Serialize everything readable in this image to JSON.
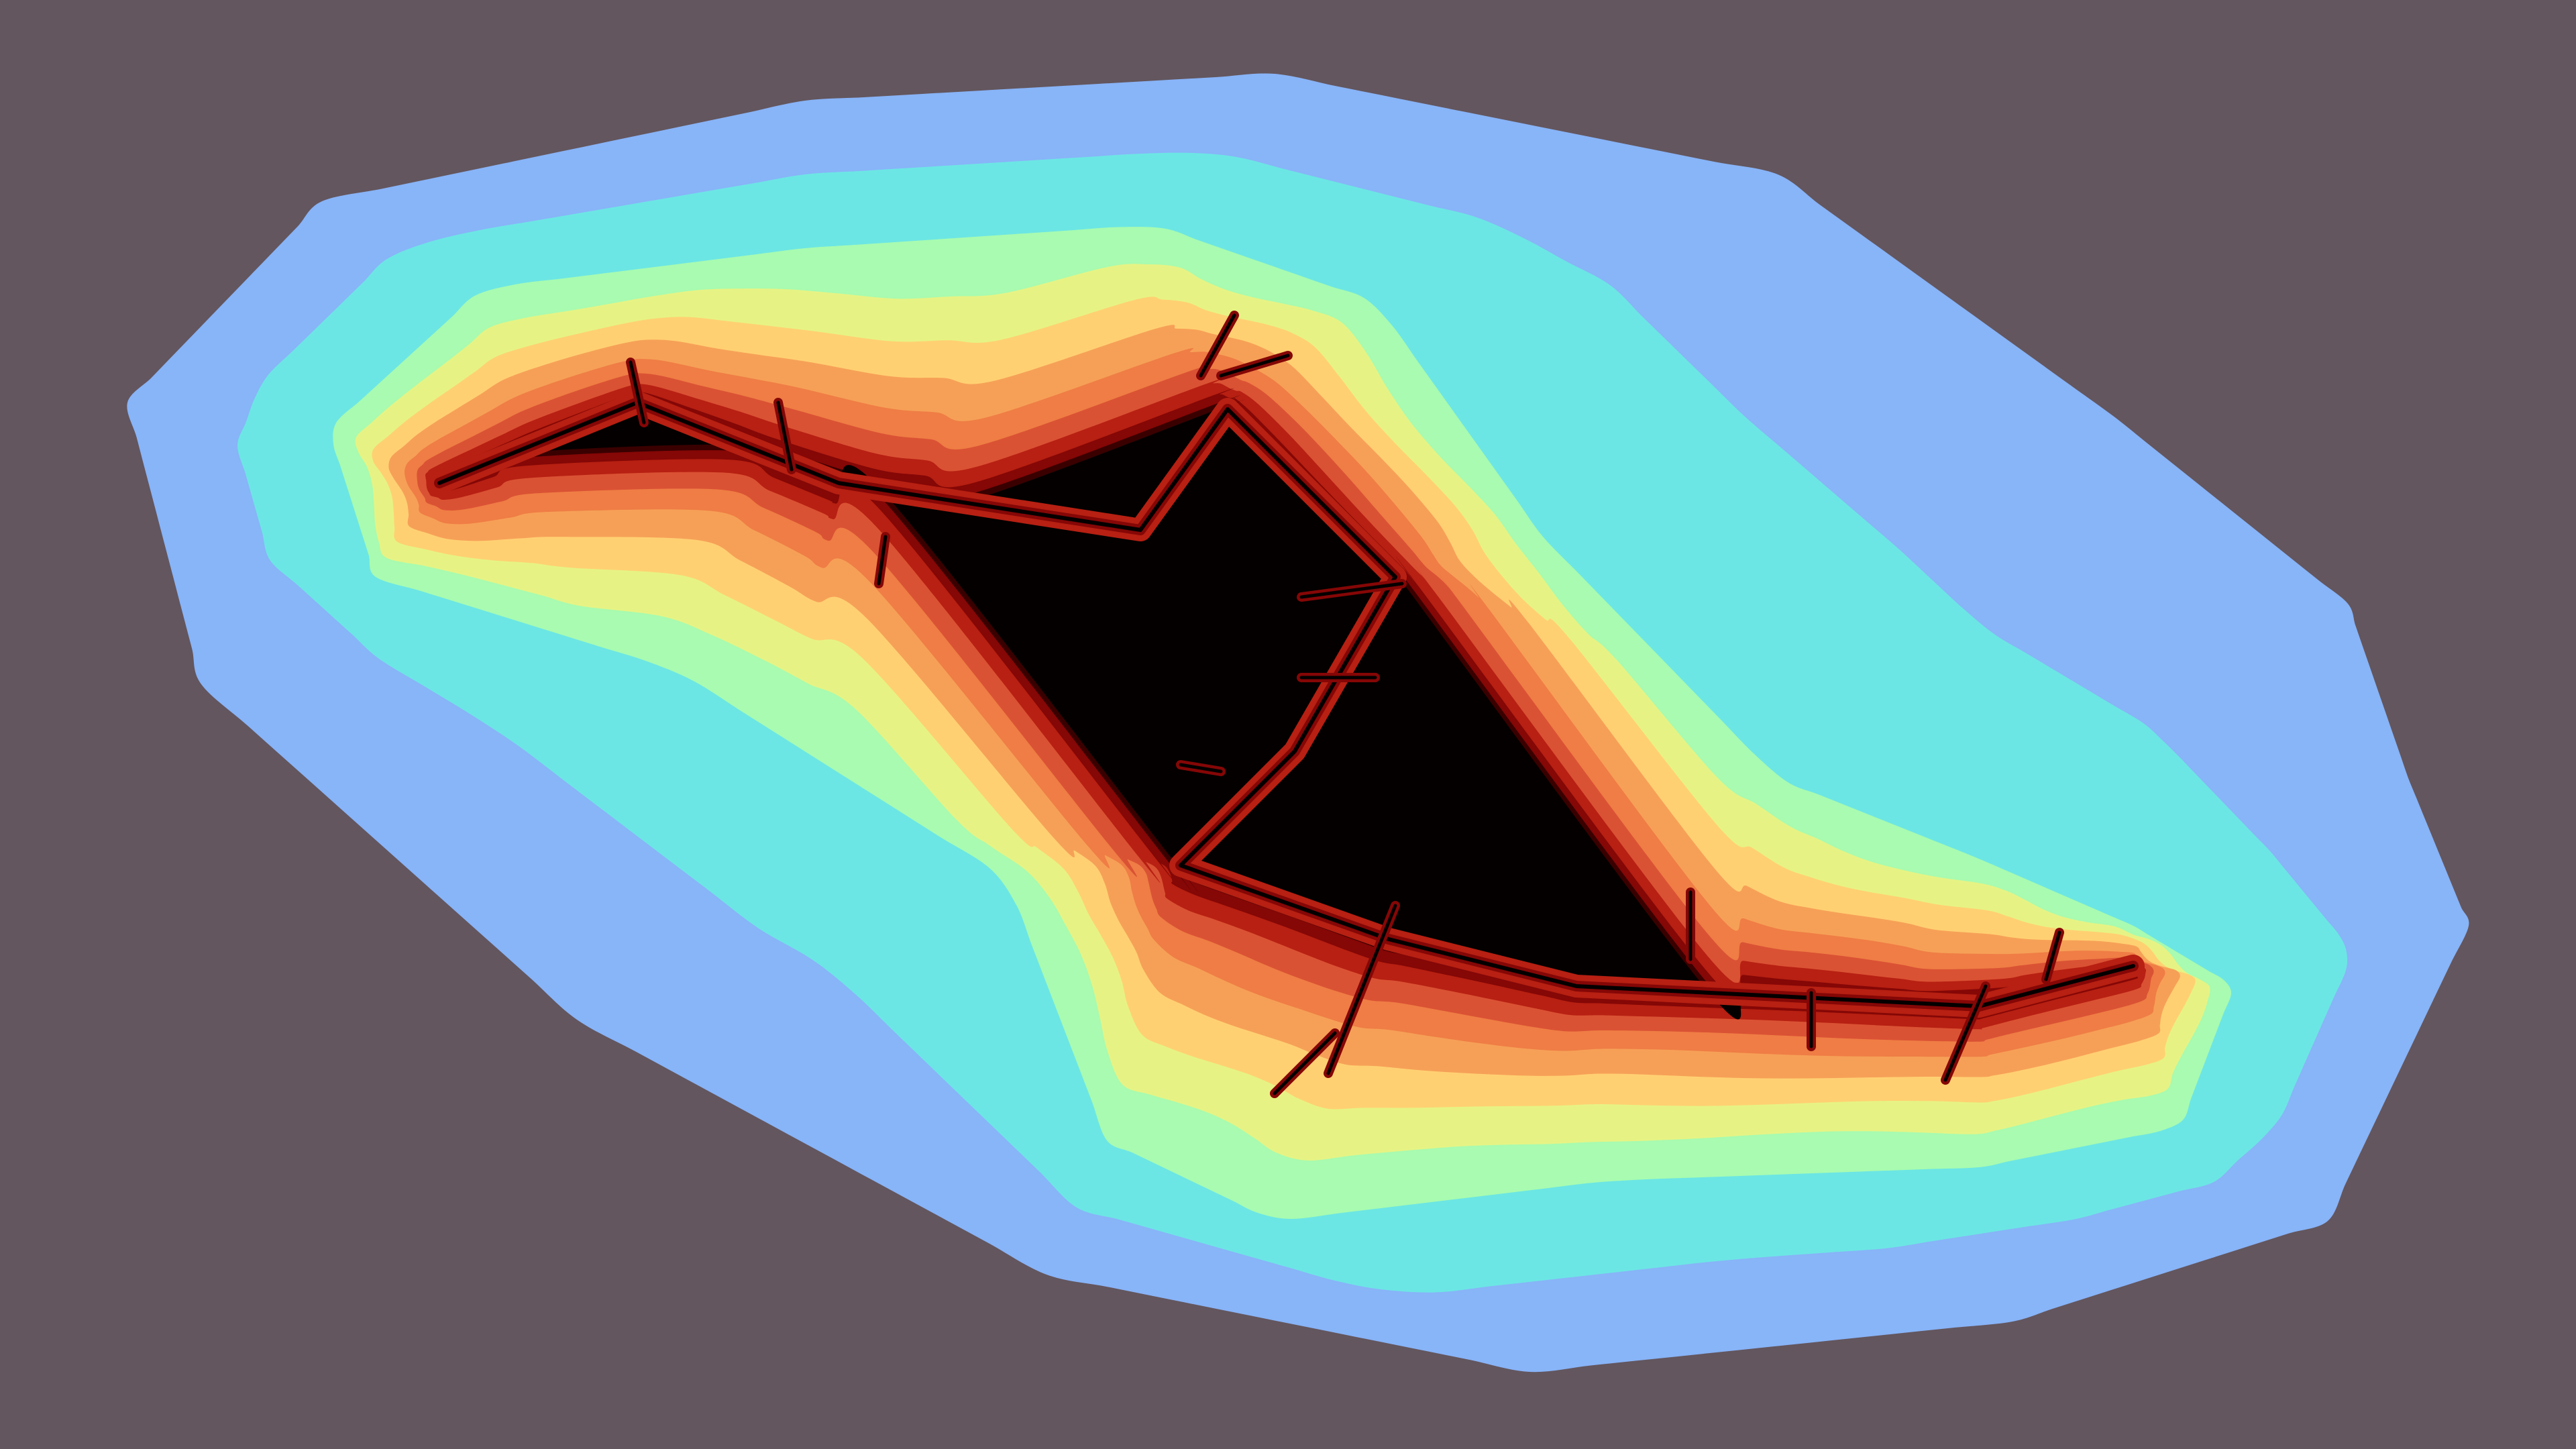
{
  "image": {
    "subject": "fractal-escape-time-render",
    "background_color": "#63565e",
    "band_colors": [
      "#88b4f8",
      "#6ce6e4",
      "#a8fbb0",
      "#e6f384",
      "#ffd072",
      "#f6a057",
      "#ef7d45",
      "#da5234",
      "#b72012",
      "#850706",
      "#3a0000",
      "#050000"
    ]
  }
}
